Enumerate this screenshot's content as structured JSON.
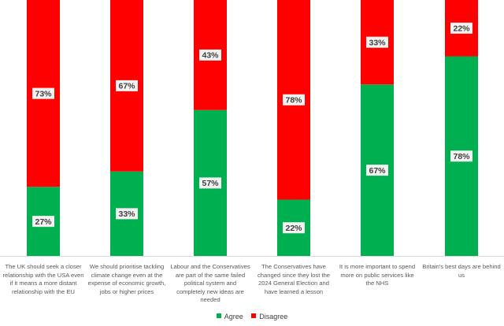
{
  "chart_data": {
    "type": "bar",
    "stacked": true,
    "percent": true,
    "categories": [
      "The UK should seek a closer relationship with the USA even if it means a more distant relationship with the EU",
      "We should prioritise tackling climate change even at the expense of economic growth, jobs or higher prices",
      "Labour and the Conservatives are part of the same failed political system and completely new ideas are needed",
      "The Conservatives have changed since they lost the 2024 General Election and have learned a lesson",
      "It is more important to spend more on public services like the NHS",
      "Britain's best days are behind us"
    ],
    "series": [
      {
        "name": "Agree",
        "color": "#00b050",
        "values": [
          27,
          33,
          57,
          22,
          67,
          78
        ]
      },
      {
        "name": "Disagree",
        "color": "#ff0000",
        "values": [
          73,
          67,
          43,
          78,
          33,
          22
        ]
      }
    ],
    "data_labels": {
      "Agree": [
        "27%",
        "33%",
        "57%",
        "22%",
        "67%",
        "78%"
      ],
      "Disagree": [
        "73%",
        "67%",
        "43%",
        "78%",
        "33%",
        "22%"
      ]
    },
    "ylim": [
      0,
      100
    ],
    "legend_position": "bottom",
    "title": "",
    "xlabel": "",
    "ylabel": ""
  }
}
